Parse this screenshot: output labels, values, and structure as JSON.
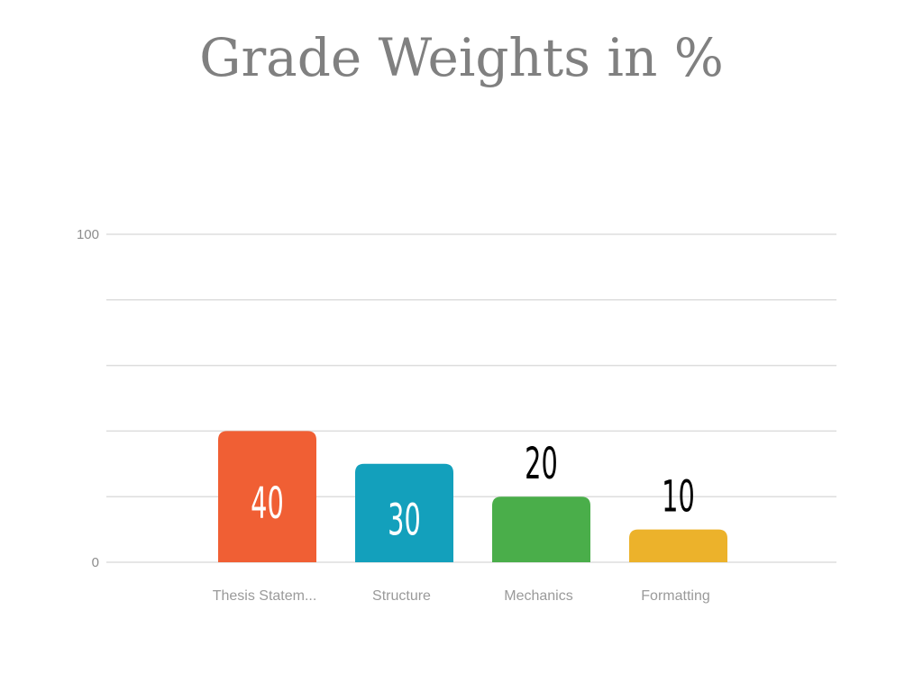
{
  "chart_data": {
    "type": "bar",
    "title": "Grade Weights in %",
    "xlabel": "",
    "ylabel": "",
    "ylim": [
      0,
      100
    ],
    "yticks_labeled": [
      "0",
      "100"
    ],
    "grid": true,
    "categories": [
      "Thesis Statem...",
      "Structure",
      "Mechanics",
      "Formatting"
    ],
    "values": [
      40,
      30,
      20,
      10
    ],
    "data_labels": [
      "40",
      "30",
      "20",
      "10"
    ],
    "colors": [
      "#f05f34",
      "#13a0bc",
      "#4aae4a",
      "#ecb22b"
    ],
    "grid_color": "#dddddd",
    "label_inside_color": "#ffffff",
    "label_outside_color": "#000000"
  }
}
